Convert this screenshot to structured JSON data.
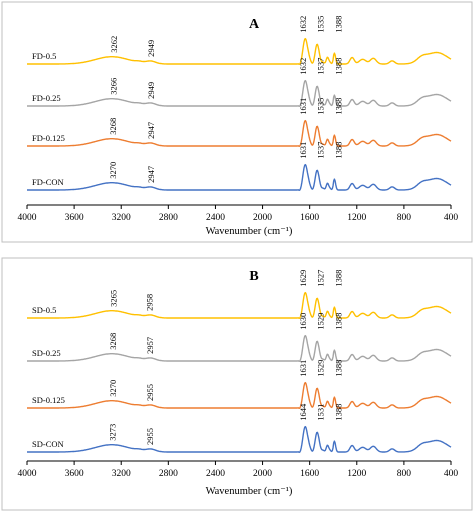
{
  "chart_data": [
    {
      "type": "line",
      "title": "A",
      "xlabel": "Wavenumber (cm⁻¹)",
      "x_reversed": true,
      "xlim": [
        4000,
        400
      ],
      "xticks": [
        4000,
        3600,
        3200,
        2800,
        2400,
        2000,
        1600,
        1200,
        800,
        400
      ],
      "y_axis_shown": false,
      "series": [
        {
          "name": "FD-0.5",
          "color": "#ffc000",
          "peaks": [
            3262,
            2949,
            1632,
            1535,
            1388
          ]
        },
        {
          "name": "FD-0.25",
          "color": "#a5a5a5",
          "peaks": [
            3266,
            2949,
            1632,
            1537,
            1388
          ]
        },
        {
          "name": "FD-0.125",
          "color": "#ed7d31",
          "peaks": [
            3268,
            2947,
            1631,
            1535,
            1388
          ]
        },
        {
          "name": "FD-CON",
          "color": "#4472c4",
          "peaks": [
            3270,
            2947,
            1631,
            1537,
            1388
          ]
        }
      ]
    },
    {
      "type": "line",
      "title": "B",
      "xlabel": "Wavenumber (cm⁻¹)",
      "x_reversed": true,
      "xlim": [
        4000,
        400
      ],
      "xticks": [
        4000,
        3600,
        3200,
        2800,
        2400,
        2000,
        1600,
        1200,
        800,
        400
      ],
      "y_axis_shown": false,
      "series": [
        {
          "name": "SD-0.5",
          "color": "#ffc000",
          "peaks": [
            3265,
            2958,
            1629,
            1527,
            1388
          ]
        },
        {
          "name": "SD-0.25",
          "color": "#a5a5a5",
          "peaks": [
            3268,
            2957,
            1630,
            1529,
            1388
          ]
        },
        {
          "name": "SD-0.125",
          "color": "#ed7d31",
          "peaks": [
            3270,
            2955,
            1631,
            1529,
            1388
          ]
        },
        {
          "name": "SD-CON",
          "color": "#4472c4",
          "peaks": [
            3273,
            2955,
            1644,
            1531,
            1388
          ]
        }
      ]
    }
  ]
}
